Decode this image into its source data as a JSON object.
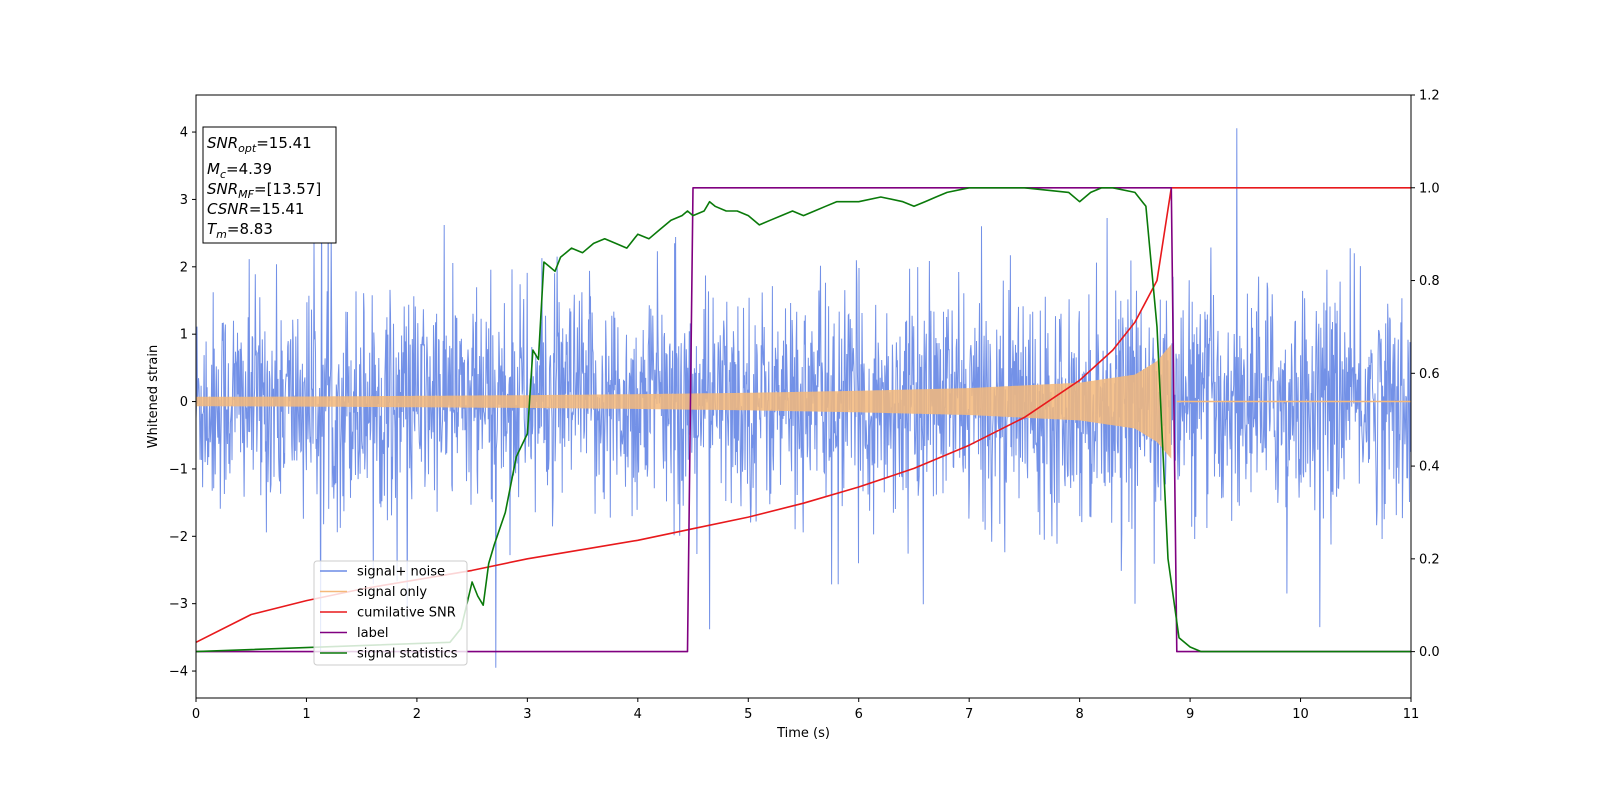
{
  "chart_data": {
    "type": "line",
    "title": "",
    "xlabel": "Time (s)",
    "ylabel": "Whitened strain",
    "xlim": [
      0,
      11
    ],
    "ylim_left": [
      -4.4,
      4.55
    ],
    "ylim_right": [
      -0.1,
      1.2
    ],
    "x_ticks": [
      0,
      1,
      2,
      3,
      4,
      5,
      6,
      7,
      8,
      9,
      10,
      11
    ],
    "y_left_ticks": [
      -4,
      -3,
      -2,
      -1,
      0,
      1,
      2,
      3,
      4
    ],
    "y_right_ticks": [
      0.0,
      0.2,
      0.4,
      0.6,
      0.8,
      1.0,
      1.2
    ],
    "y_right_tick_labels": [
      "0.0",
      "0.2",
      "0.4",
      "0.6",
      "0.8",
      "1.0",
      "1.2"
    ],
    "grid": false,
    "legend_position": "lower-left",
    "stats_box": {
      "lines": [
        {
          "main": "SNR",
          "sub": "opt",
          "value": "=15.41"
        },
        {
          "main": "M",
          "sub": "c",
          "value": "=4.39"
        },
        {
          "main": "SNR",
          "sub": "MF",
          "value": "=[13.57]"
        },
        {
          "main": "CSNR",
          "sub": "",
          "value": "=15.41"
        },
        {
          "main": "T",
          "sub": "m",
          "value": "=8.83"
        }
      ]
    },
    "series": [
      {
        "name": "signal+ noise",
        "axis": "left",
        "color": "#6b8be6",
        "description_shape": "noise band approx ±1.5 with spikes to ±4, centered at 0, over 0–11 s"
      },
      {
        "name": "signal only",
        "axis": "left",
        "color": "#f5b97a",
        "envelope_x": [
          0,
          1,
          2,
          3,
          4,
          5,
          6,
          7,
          8,
          8.5,
          8.7,
          8.83
        ],
        "envelope_y": [
          0.07,
          0.075,
          0.085,
          0.095,
          0.11,
          0.13,
          0.16,
          0.2,
          0.28,
          0.4,
          0.6,
          0.85
        ]
      },
      {
        "name": "cumilative SNR",
        "axis": "right",
        "color": "#e8191c",
        "x": [
          0,
          0.5,
          1,
          1.5,
          2,
          2.5,
          3,
          3.5,
          4,
          4.5,
          5,
          5.5,
          6,
          6.5,
          7,
          7.5,
          8,
          8.3,
          8.5,
          8.7,
          8.83,
          9,
          10,
          11
        ],
        "y": [
          0.02,
          0.08,
          0.11,
          0.135,
          0.155,
          0.175,
          0.2,
          0.22,
          0.24,
          0.265,
          0.29,
          0.32,
          0.355,
          0.395,
          0.445,
          0.505,
          0.585,
          0.65,
          0.71,
          0.8,
          1.0,
          1.0,
          1.0,
          1.0
        ]
      },
      {
        "name": "label",
        "axis": "right",
        "color": "#800080",
        "x": [
          0,
          4.45,
          4.5,
          8.83,
          8.88,
          11
        ],
        "y": [
          0.0,
          0.0,
          1.0,
          1.0,
          0.0,
          0.0
        ]
      },
      {
        "name": "signal statistics",
        "axis": "right",
        "color": "#0a7a0a",
        "x": [
          0,
          2.3,
          2.4,
          2.5,
          2.55,
          2.6,
          2.65,
          2.7,
          2.8,
          2.9,
          3.0,
          3.05,
          3.1,
          3.15,
          3.2,
          3.25,
          3.3,
          3.35,
          3.4,
          3.5,
          3.6,
          3.7,
          3.8,
          3.9,
          4.0,
          4.1,
          4.2,
          4.3,
          4.4,
          4.45,
          4.5,
          4.6,
          4.65,
          4.7,
          4.8,
          4.9,
          5.0,
          5.1,
          5.2,
          5.3,
          5.4,
          5.5,
          5.6,
          5.7,
          5.8,
          5.9,
          6.0,
          6.2,
          6.4,
          6.5,
          6.6,
          6.7,
          6.8,
          7.0,
          7.5,
          7.9,
          8.0,
          8.1,
          8.2,
          8.3,
          8.5,
          8.6,
          8.7,
          8.8,
          8.9,
          9.0,
          9.1,
          11
        ],
        "y": [
          0.0,
          0.02,
          0.05,
          0.15,
          0.12,
          0.1,
          0.19,
          0.23,
          0.3,
          0.42,
          0.47,
          0.65,
          0.63,
          0.84,
          0.83,
          0.82,
          0.85,
          0.86,
          0.87,
          0.86,
          0.88,
          0.89,
          0.88,
          0.87,
          0.9,
          0.89,
          0.91,
          0.93,
          0.94,
          0.95,
          0.94,
          0.95,
          0.97,
          0.96,
          0.95,
          0.95,
          0.94,
          0.92,
          0.93,
          0.94,
          0.95,
          0.94,
          0.95,
          0.96,
          0.97,
          0.97,
          0.97,
          0.98,
          0.97,
          0.96,
          0.97,
          0.98,
          0.99,
          1.0,
          1.0,
          0.99,
          0.97,
          0.99,
          1.0,
          1.0,
          0.99,
          0.96,
          0.7,
          0.2,
          0.03,
          0.01,
          0.0,
          0.0
        ]
      }
    ]
  }
}
